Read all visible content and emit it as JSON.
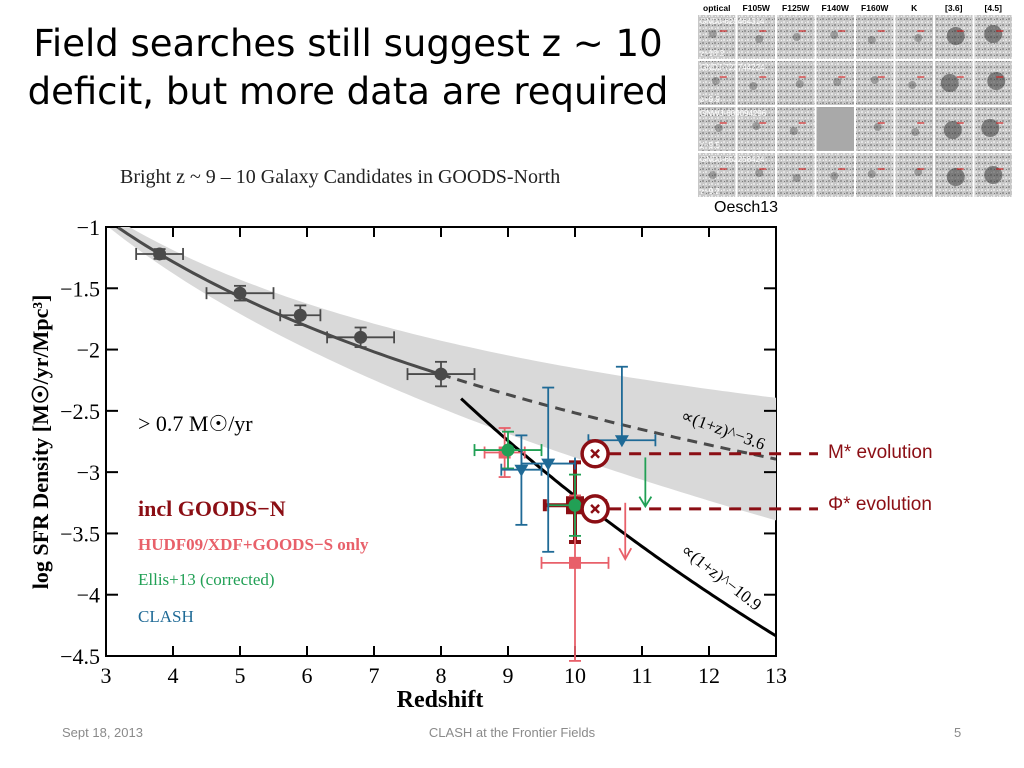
{
  "slide": {
    "title_line1": "Field searches still suggest z ~ 10",
    "title_line2": "deficit, but more data are required",
    "footer_date": "Sept 18, 2013",
    "footer_center": "CLASH at the Frontier Fields",
    "page_number": "5"
  },
  "inset": {
    "columns": [
      "optical",
      "F105W",
      "F125W",
      "F140W",
      "F160W",
      "K",
      "[3.6]",
      "[4.5]"
    ],
    "rows": [
      {
        "id": "GNDJ-625464314",
        "z": "z~10.2"
      },
      {
        "id": "GNDJ-722744224",
        "z": "z~9.9"
      },
      {
        "id": "GNWJ-604094296",
        "z": "z~9.5"
      },
      {
        "id": "GNDJ-652258424",
        "z": "z~9.2"
      }
    ],
    "source": "Oesch13"
  },
  "chart_data": {
    "type": "scatter",
    "title": "Bright z ~ 9 – 10 Galaxy Candidates in GOODS-North",
    "xlabel": "Redshift",
    "ylabel": "log SFR Density [M☉/yr/Mpc³]",
    "xlim": [
      3,
      13
    ],
    "ylim": [
      -4.5,
      -1
    ],
    "xticks": [
      "3",
      "4",
      "5",
      "6",
      "7",
      "8",
      "9",
      "10",
      "11",
      "12",
      "13"
    ],
    "yticks": [
      "−1",
      "−1.5",
      "−2",
      "−2.5",
      "−3",
      "−3.5",
      "−4",
      "−4.5"
    ],
    "threshold_label": "> 0.7 M☉/yr",
    "legend": [
      {
        "label": "incl GOODS−N",
        "color": "#8b0e14"
      },
      {
        "label": "HUDF09/XDF+GOODS−S only",
        "color": "#e8606a"
      },
      {
        "label": "Ellis+13 (corrected)",
        "color": "#21a055"
      },
      {
        "label": "CLASH",
        "color": "#1f6a96"
      }
    ],
    "fit_labels": {
      "shallow": "∝(1+z)^−3.6",
      "steep": "∝(1+z)^−10.9"
    },
    "annotations": {
      "m_star": "M* evolution",
      "phi_star": "Φ* evolution"
    },
    "series": [
      {
        "name": "low-z",
        "color": "#4a4a4a",
        "marker": "circle",
        "points": [
          {
            "x": 3.8,
            "y": -1.22,
            "xerr": 0.35,
            "yerr": 0.04
          },
          {
            "x": 5.0,
            "y": -1.54,
            "xerr": 0.5,
            "yerr": 0.06
          },
          {
            "x": 5.9,
            "y": -1.72,
            "xerr": 0.3,
            "yerr": 0.08
          },
          {
            "x": 6.8,
            "y": -1.9,
            "xerr": 0.5,
            "yerr": 0.08
          },
          {
            "x": 8.0,
            "y": -2.2,
            "xerr": 0.5,
            "yerr": 0.1
          }
        ]
      },
      {
        "name": "incl GOODS−N",
        "color": "#8b0e14",
        "marker": "square",
        "points": [
          {
            "x": 10.0,
            "y": -3.27,
            "xerr": 0.45,
            "yerr_up": 0.35,
            "yerr_down": 0.3
          }
        ]
      },
      {
        "name": "HUDF09/XDF+GOODS−S only",
        "color": "#e8606a",
        "marker": "square",
        "points": [
          {
            "x": 8.95,
            "y": -2.84,
            "xerr": 0.3,
            "yerr": 0.2
          },
          {
            "x": 10.0,
            "y": -3.74,
            "xerr": 0.5,
            "yerr_up": 0.55,
            "yerr_down": 0.8
          }
        ]
      },
      {
        "name": "Ellis+13 (corrected)",
        "color": "#21a055",
        "marker": "circle",
        "points": [
          {
            "x": 9.0,
            "y": -2.82,
            "xerr": 0.5,
            "yerr": 0.15
          },
          {
            "x": 10.0,
            "y": -3.27,
            "xerr": 0.4,
            "yerr": 0.25
          }
        ]
      },
      {
        "name": "CLASH",
        "color": "#1f6a96",
        "marker": "triangle",
        "points": [
          {
            "x": 9.2,
            "y": -2.98,
            "xerr": 0.3,
            "yerr_up": 0.28,
            "yerr_down": 0.45
          },
          {
            "x": 9.6,
            "y": -2.93,
            "xerr": 0.4,
            "yerr_up": 0.62,
            "yerr_down": 0.72
          },
          {
            "x": 10.7,
            "y": -2.74,
            "xerr": 0.5,
            "yerr_up": 0.6,
            "yerr_down": 0.0
          }
        ]
      }
    ],
    "model_points": [
      {
        "label": "M* evolution",
        "x": 10.3,
        "y": -2.85
      },
      {
        "label": "Φ* evolution",
        "x": 10.3,
        "y": -3.3
      }
    ]
  }
}
